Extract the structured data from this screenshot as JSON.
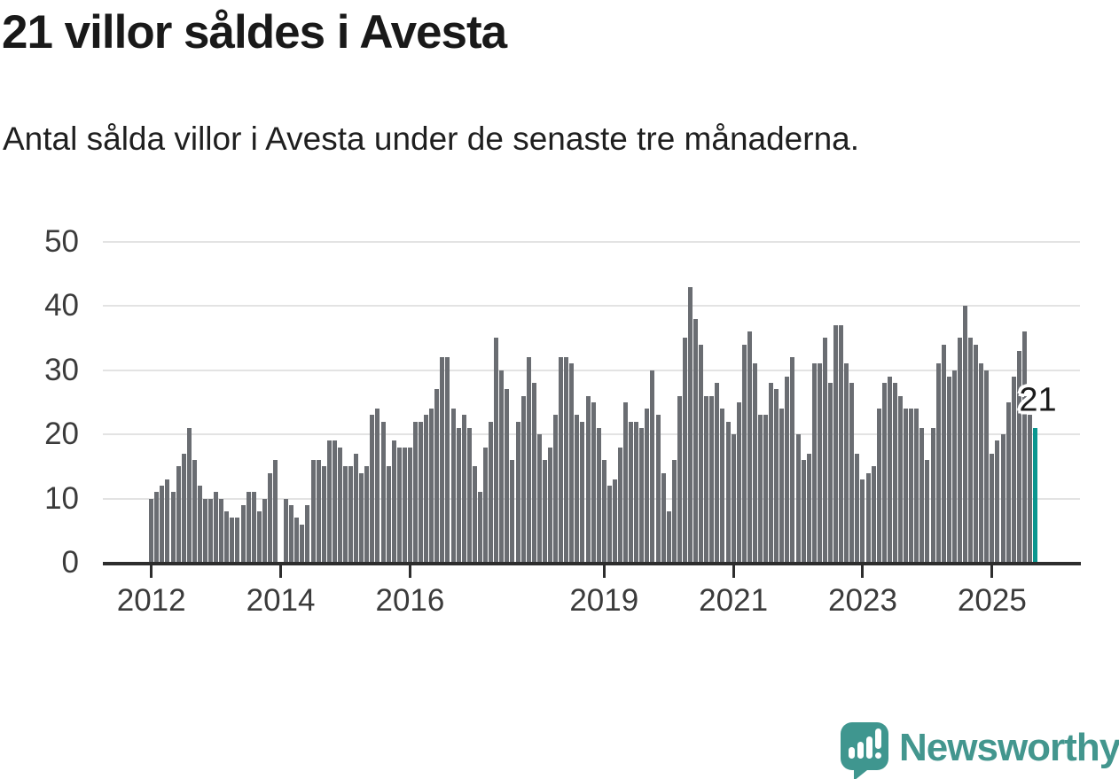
{
  "title": "21 villor såldes i Avesta",
  "subtitle": "Antal sålda villor i Avesta under de senaste tre månaderna.",
  "annotation": {
    "label": "21"
  },
  "branding": {
    "name": "Newsworthy",
    "icon": "newsworthy-speech-bubble-chart-icon",
    "color": "#3f968f"
  },
  "chart_data": {
    "type": "bar",
    "title": "21 villor såldes i Avesta",
    "xlabel": "",
    "ylabel": "",
    "ylim": [
      0,
      50
    ],
    "yticks": [
      0,
      10,
      20,
      30,
      40,
      50
    ],
    "grid": true,
    "x_start": "2012-01",
    "x_end": "2025-09",
    "x_unit": "month",
    "xticks": [
      {
        "label": "2012",
        "month_index": 0
      },
      {
        "label": "2014",
        "month_index": 24
      },
      {
        "label": "2016",
        "month_index": 48
      },
      {
        "label": "2019",
        "month_index": 84
      },
      {
        "label": "2021",
        "month_index": 108
      },
      {
        "label": "2023",
        "month_index": 132
      },
      {
        "label": "2025",
        "month_index": 156
      }
    ],
    "bar_color": "#6a6d72",
    "highlight_color": "#0a968f",
    "highlight": {
      "index": 164,
      "value": 21,
      "label": "21",
      "period": "2025-09"
    },
    "values": [
      10,
      11,
      12,
      13,
      11,
      15,
      17,
      21,
      16,
      12,
      10,
      10,
      11,
      10,
      8,
      7,
      7,
      9,
      11,
      11,
      8,
      10,
      14,
      16,
      0,
      10,
      9,
      7,
      6,
      9,
      16,
      16,
      15,
      19,
      19,
      18,
      15,
      15,
      17,
      14,
      15,
      23,
      24,
      22,
      15,
      19,
      18,
      18,
      18,
      22,
      22,
      23,
      24,
      27,
      32,
      32,
      24,
      21,
      23,
      21,
      15,
      11,
      18,
      22,
      35,
      30,
      27,
      16,
      22,
      26,
      32,
      28,
      20,
      16,
      18,
      23,
      32,
      32,
      31,
      23,
      22,
      26,
      25,
      21,
      16,
      12,
      13,
      18,
      25,
      22,
      22,
      21,
      24,
      30,
      23,
      14,
      8,
      16,
      26,
      35,
      43,
      38,
      34,
      26,
      26,
      28,
      24,
      22,
      20,
      25,
      34,
      36,
      31,
      23,
      23,
      28,
      27,
      24,
      29,
      32,
      20,
      16,
      17,
      31,
      31,
      35,
      28,
      37,
      37,
      31,
      28,
      17,
      13,
      14,
      15,
      24,
      28,
      29,
      28,
      26,
      24,
      24,
      24,
      21,
      16,
      21,
      31,
      34,
      29,
      30,
      35,
      40,
      35,
      34,
      31,
      30,
      17,
      19,
      20,
      25,
      29,
      33,
      36,
      23,
      21
    ]
  }
}
